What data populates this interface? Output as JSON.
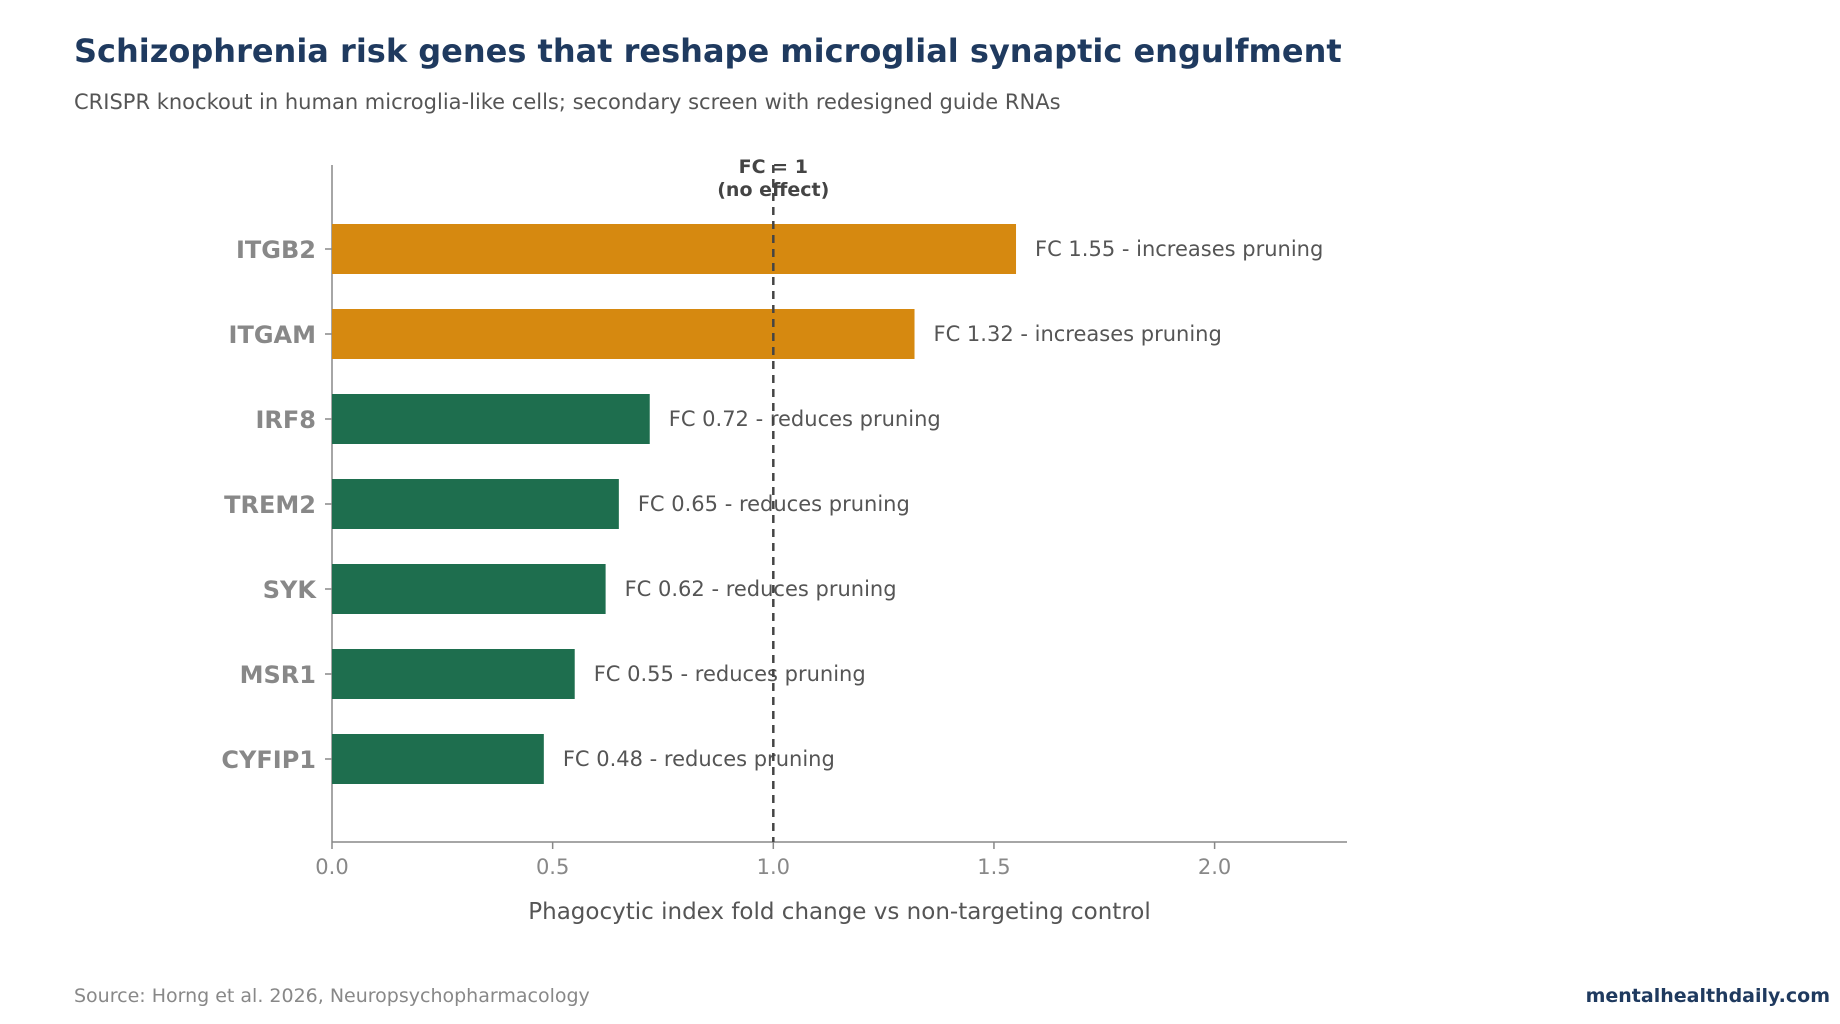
{
  "header": {
    "title": "Schizophrenia risk genes that reshape microglial synaptic engulfment",
    "subtitle": "CRISPR knockout in human microglia-like cells; secondary screen with redesigned guide RNAs"
  },
  "footer": {
    "source": "Source: Horng et al. 2026, Neuropsychopharmacology",
    "brand": "mentalhealthdaily.com"
  },
  "colors": {
    "increase": "#d68910",
    "decrease": "#1e6e4e",
    "title": "#1f3a5f",
    "axis": "#888888",
    "label_text": "#555555",
    "reference_line": "#444444"
  },
  "chart_data": {
    "type": "bar",
    "orientation": "horizontal",
    "categories": [
      "ITGB2",
      "ITGAM",
      "IRF8",
      "TREM2",
      "SYK",
      "MSR1",
      "CYFIP1"
    ],
    "values": [
      1.55,
      1.32,
      0.72,
      0.65,
      0.62,
      0.55,
      0.48
    ],
    "effects": [
      "increase",
      "increase",
      "decrease",
      "decrease",
      "decrease",
      "decrease",
      "decrease"
    ],
    "data_labels": [
      "FC 1.55 - increases pruning",
      "FC 1.32 - increases pruning",
      "FC 0.72 - reduces pruning",
      "FC 0.65 - reduces pruning",
      "FC 0.62 - reduces pruning",
      "FC 0.55 - reduces pruning",
      "FC 0.48 - reduces pruning"
    ],
    "xlabel": "Phagocytic index fold change vs non-targeting control",
    "ylabel": "",
    "xlim": [
      0,
      2.3
    ],
    "xticks": [
      0.0,
      0.5,
      1.0,
      1.5,
      2.0
    ],
    "xtick_labels": [
      "0.0",
      "0.5",
      "1.0",
      "1.5",
      "2.0"
    ],
    "reference_line": {
      "x": 1.0,
      "label_line1": "FC = 1",
      "label_line2": "(no effect)"
    },
    "grid": false,
    "legend": "none"
  }
}
